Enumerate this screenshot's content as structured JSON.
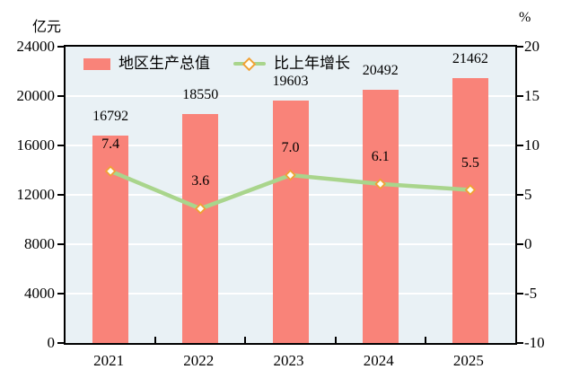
{
  "chart": {
    "left_axis_title": "亿元",
    "right_axis_title": "%"
  },
  "chart_data": {
    "type": "bar+line combo",
    "title": "",
    "categories": [
      "2021",
      "2022",
      "2023",
      "2024",
      "2025"
    ],
    "series": [
      {
        "name": "地区生产总值",
        "type": "bar",
        "axis": "left",
        "values": [
          16792,
          18550,
          19603,
          20492,
          21462
        ],
        "labels": [
          "16792",
          "18550",
          "19603",
          "20492",
          "21462"
        ],
        "color": "#F98379",
        "label_color": "#000000"
      },
      {
        "name": "比上年增长",
        "type": "line",
        "axis": "right",
        "values": [
          7.4,
          3.6,
          7.0,
          6.1,
          5.5
        ],
        "labels": [
          "7.4",
          "3.6",
          "7.0",
          "6.1",
          "5.5"
        ],
        "color": "#A9D58C",
        "marker": "diamond",
        "marker_border": "#F0A135",
        "marker_fill": "#FFFEF5",
        "label_color": "#000000"
      }
    ],
    "left_axis": {
      "title": "亿元",
      "min": 0,
      "max": 24000,
      "step": 4000,
      "ticks": [
        "0",
        "4000",
        "8000",
        "12000",
        "16000",
        "20000",
        "24000"
      ]
    },
    "right_axis": {
      "title": "%",
      "min": -10,
      "max": 20,
      "step": 5,
      "ticks": [
        "-10",
        "-5",
        "0",
        "5",
        "10",
        "15",
        "20"
      ]
    },
    "grid": true,
    "gridline_color": "#FFFFFF",
    "plot_bg": "#E9F1F5",
    "frame_color": "#000000",
    "legend_position": "top-left-inside"
  }
}
